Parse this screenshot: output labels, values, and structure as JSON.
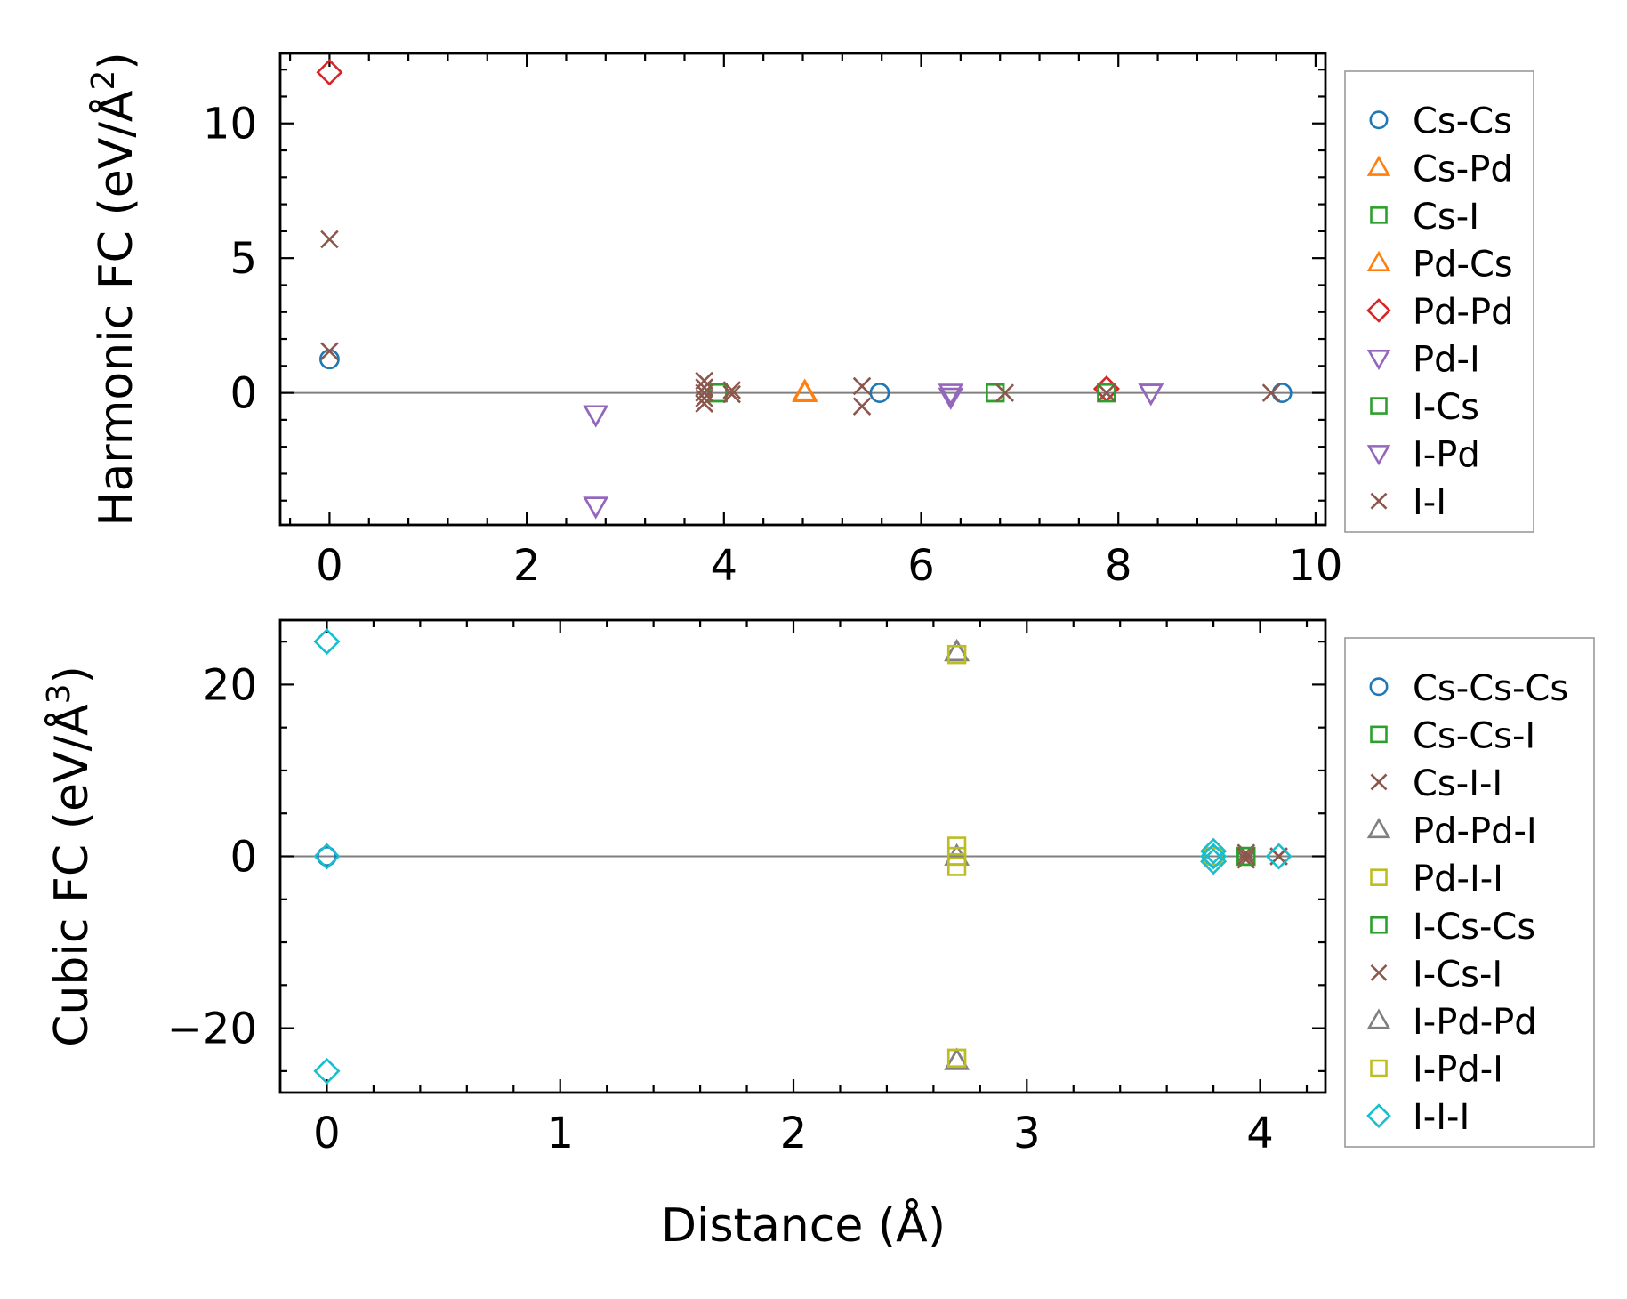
{
  "figure": {
    "xlabel": "Distance (Å)"
  },
  "chart_data": [
    {
      "type": "scatter",
      "title": "",
      "ylabel_main": "Harmonic FC (eV/Å",
      "ylabel_sup": "2",
      "ylabel_close": ")",
      "xlim": [
        -0.5,
        10.1
      ],
      "ylim": [
        -4.9,
        12.6
      ],
      "xticks": [
        0,
        2,
        4,
        6,
        8,
        10
      ],
      "yticks": [
        0,
        5,
        10
      ],
      "xminor": [
        -0.4,
        0.4,
        0.8,
        1.2,
        1.6,
        2.4,
        2.8,
        3.2,
        3.6,
        4.4,
        4.8,
        5.2,
        5.6,
        6.4,
        6.8,
        7.2,
        7.6,
        8.4,
        8.8,
        9.2,
        9.6
      ],
      "yminor": [
        -4,
        -3,
        -2,
        -1,
        1,
        2,
        3,
        4,
        6,
        7,
        8,
        9,
        11,
        12
      ],
      "zero_line": true,
      "legend_position": "right",
      "series": [
        {
          "name": "Cs-Cs",
          "color": "#1f77b4",
          "marker": "circle",
          "x": [
            0,
            5.58,
            9.66
          ],
          "y": [
            1.25,
            0.0,
            0.0
          ]
        },
        {
          "name": "Cs-Pd",
          "color": "#ff7f0e",
          "marker": "triangle-up",
          "x": [
            4.82
          ],
          "y": [
            0.0
          ]
        },
        {
          "name": "Cs-I",
          "color": "#2ca02c",
          "marker": "square",
          "x": [
            3.94,
            6.75,
            7.88
          ],
          "y": [
            0.0,
            0.0,
            0.0
          ]
        },
        {
          "name": "Pd-Cs",
          "color": "#ff7f0e",
          "marker": "triangle-up",
          "x": [
            4.82
          ],
          "y": [
            0.05
          ]
        },
        {
          "name": "Pd-Pd",
          "color": "#d62728",
          "marker": "diamond",
          "x": [
            0,
            7.88
          ],
          "y": [
            11.9,
            0.15
          ]
        },
        {
          "name": "Pd-I",
          "color": "#9467bd",
          "marker": "triangle-down",
          "x": [
            2.7,
            2.7,
            6.3,
            8.33
          ],
          "y": [
            -0.8,
            -4.2,
            0.0,
            0.0
          ]
        },
        {
          "name": "I-Cs",
          "color": "#2ca02c",
          "marker": "square",
          "x": [
            3.94,
            6.75,
            7.88
          ],
          "y": [
            0.0,
            0.0,
            0.0
          ]
        },
        {
          "name": "I-Pd",
          "color": "#9467bd",
          "marker": "triangle-down",
          "x": [
            2.7,
            2.7,
            6.3,
            8.33
          ],
          "y": [
            -0.8,
            -4.2,
            -0.15,
            0.0
          ]
        },
        {
          "name": "I-I",
          "color": "#8c564b",
          "marker": "x",
          "x": [
            0,
            0,
            3.8,
            3.8,
            3.8,
            3.8,
            3.8,
            4.08,
            4.08,
            5.4,
            5.4,
            6.85,
            7.88,
            9.55
          ],
          "y": [
            5.7,
            1.55,
            0.45,
            0.2,
            0.0,
            -0.2,
            -0.4,
            0.1,
            -0.05,
            0.25,
            -0.5,
            0.0,
            0.0,
            0.0
          ]
        }
      ]
    },
    {
      "type": "scatter",
      "title": "",
      "ylabel_main": "Cubic FC (eV/Å",
      "ylabel_sup": "3",
      "ylabel_close": ")",
      "xlim": [
        -0.2,
        4.28
      ],
      "ylim": [
        -27.5,
        27.5
      ],
      "xticks": [
        0,
        1,
        2,
        3,
        4
      ],
      "yticks": [
        -20,
        0,
        20
      ],
      "yticklabels": [
        "−20",
        "0",
        "20"
      ],
      "xminor": [
        -0.2,
        0.2,
        0.4,
        0.6,
        0.8,
        1.2,
        1.4,
        1.6,
        1.8,
        2.2,
        2.4,
        2.6,
        2.8,
        3.2,
        3.4,
        3.6,
        3.8,
        4.2
      ],
      "yminor": [
        -25,
        -15,
        -10,
        -5,
        5,
        10,
        15,
        25
      ],
      "zero_line": true,
      "legend_position": "right",
      "series": [
        {
          "name": "Cs-Cs-Cs",
          "color": "#1f77b4",
          "marker": "circle",
          "x": [
            0,
            3.8
          ],
          "y": [
            0.0,
            0.0
          ]
        },
        {
          "name": "Cs-Cs-I",
          "color": "#2ca02c",
          "marker": "square",
          "x": [
            3.94
          ],
          "y": [
            0.0
          ]
        },
        {
          "name": "Cs-I-I",
          "color": "#8c564b",
          "marker": "x",
          "x": [
            3.94,
            3.94,
            4.08
          ],
          "y": [
            0.4,
            -0.4,
            0.0
          ]
        },
        {
          "name": "Pd-Pd-I",
          "color": "#7f7f7f",
          "marker": "triangle-up",
          "x": [
            2.7,
            2.7,
            2.7
          ],
          "y": [
            23.8,
            0.0,
            -23.8
          ]
        },
        {
          "name": "Pd-I-I",
          "color": "#bcbd22",
          "marker": "square",
          "x": [
            2.7,
            2.7,
            2.7,
            2.7,
            2.7,
            3.8
          ],
          "y": [
            23.5,
            1.2,
            0.0,
            -1.2,
            -23.5,
            0.0
          ]
        },
        {
          "name": "I-Cs-Cs",
          "color": "#2ca02c",
          "marker": "square",
          "x": [
            3.94
          ],
          "y": [
            0.0
          ]
        },
        {
          "name": "I-Cs-I",
          "color": "#8c564b",
          "marker": "x",
          "x": [
            3.94,
            4.08
          ],
          "y": [
            0.0,
            0.0
          ]
        },
        {
          "name": "I-Pd-Pd",
          "color": "#7f7f7f",
          "marker": "triangle-up",
          "x": [
            2.7,
            2.7
          ],
          "y": [
            23.8,
            -23.8
          ]
        },
        {
          "name": "I-Pd-I",
          "color": "#bcbd22",
          "marker": "square",
          "x": [
            2.7,
            2.7
          ],
          "y": [
            23.5,
            -23.5
          ]
        },
        {
          "name": "I-I-I",
          "color": "#17becf",
          "marker": "diamond",
          "x": [
            0,
            0,
            0,
            3.8,
            3.8,
            3.8,
            4.08
          ],
          "y": [
            25.0,
            0.0,
            -25.0,
            0.6,
            0.0,
            -0.6,
            0.0
          ]
        }
      ]
    }
  ]
}
